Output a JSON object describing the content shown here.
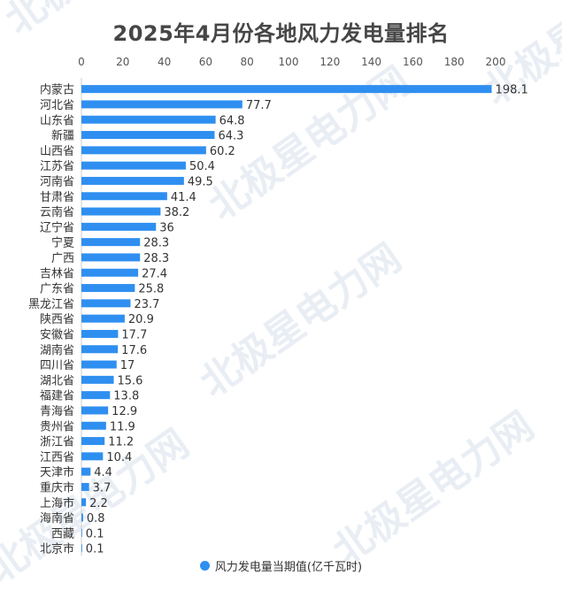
{
  "watermark": "北极星电力网",
  "colors": {
    "bar": "#2f8ff0",
    "title": "#464646",
    "text": "#333333",
    "grid": "#e6e6e6",
    "watermark": "#e9eef4"
  },
  "chart_data": {
    "type": "bar",
    "orientation": "horizontal",
    "title": "2025年4月份各地风力发电量排名",
    "categories": [
      "内蒙古",
      "河北省",
      "山东省",
      "新疆",
      "山西省",
      "江苏省",
      "河南省",
      "甘肃省",
      "云南省",
      "辽宁省",
      "宁夏",
      "广西",
      "吉林省",
      "广东省",
      "黑龙江省",
      "陕西省",
      "安徽省",
      "湖南省",
      "四川省",
      "湖北省",
      "福建省",
      "青海省",
      "贵州省",
      "浙江省",
      "江西省",
      "天津市",
      "重庆市",
      "上海市",
      "海南省",
      "西藏",
      "北京市"
    ],
    "series": [
      {
        "name": "风力发电量当期值(亿千瓦时)",
        "values": [
          198.1,
          77.7,
          64.8,
          64.3,
          60.2,
          50.4,
          49.5,
          41.4,
          38.2,
          36,
          28.3,
          28.3,
          27.4,
          25.8,
          23.7,
          20.9,
          17.7,
          17.6,
          17,
          15.6,
          13.8,
          12.9,
          11.9,
          11.2,
          10.4,
          4.4,
          3.7,
          2.2,
          0.8,
          0.1,
          0.1
        ]
      }
    ],
    "value_labels": [
      "198.1",
      "77.7",
      "64.8",
      "64.3",
      "60.2",
      "50.4",
      "49.5",
      "41.4",
      "38.2",
      "36",
      "28.3",
      "28.3",
      "27.4",
      "25.8",
      "23.7",
      "20.9",
      "17.7",
      "17.6",
      "17",
      "15.6",
      "13.8",
      "12.9",
      "11.9",
      "11.2",
      "10.4",
      "4.4",
      "3.7",
      "2.2",
      "0.8",
      "0.1",
      "0.1"
    ],
    "xlim": [
      0,
      200
    ],
    "xticks": [
      "0",
      "20",
      "40",
      "60",
      "80",
      "100",
      "120",
      "140",
      "160",
      "180",
      "200"
    ],
    "x_axis_position": "top",
    "grid": false,
    "legend_position": "bottom-center"
  }
}
